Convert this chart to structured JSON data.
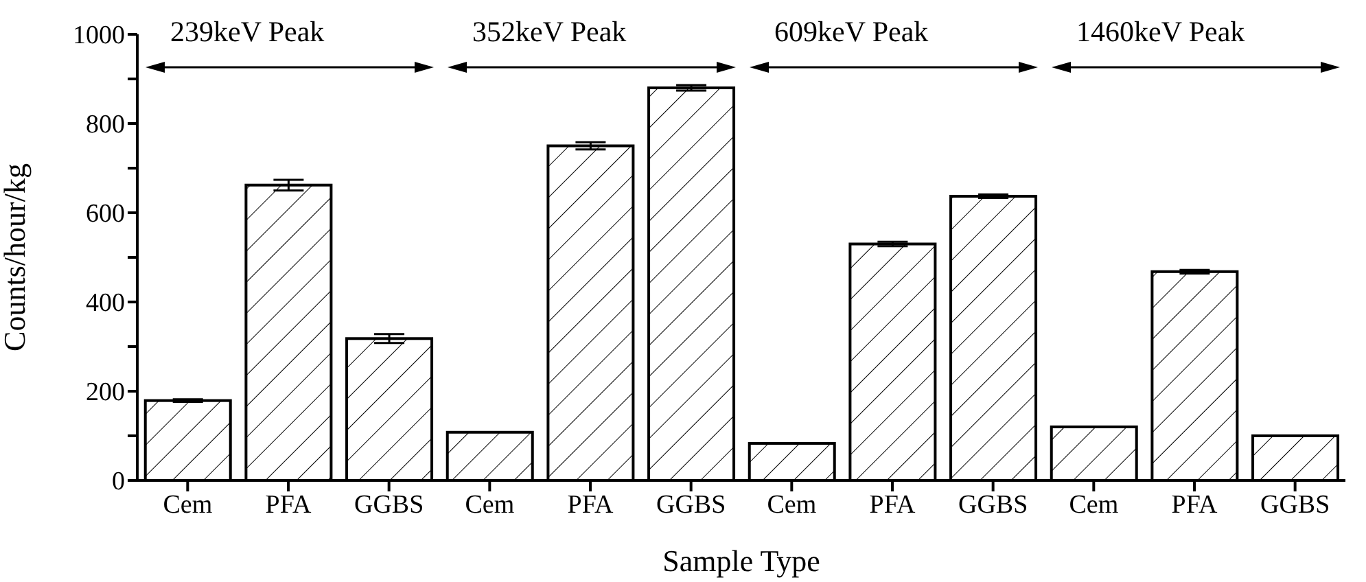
{
  "chart_data": {
    "type": "bar",
    "xlabel": "Sample Type",
    "ylabel": "Counts/hour/kg",
    "categories": [
      "Cem",
      "PFA",
      "GGBS",
      "Cem",
      "PFA",
      "GGBS",
      "Cem",
      "PFA",
      "GGBS",
      "Cem",
      "PFA",
      "GGBS"
    ],
    "values": [
      179,
      662,
      318,
      108,
      750,
      880,
      83,
      530,
      637,
      120,
      468,
      100
    ],
    "errors": [
      3,
      12,
      10,
      null,
      8,
      6,
      null,
      5,
      4,
      null,
      4,
      null
    ],
    "color": "#000000",
    "ylim": [
      0,
      1000
    ],
    "yticks": [
      0,
      {
        "value": 100,
        "label": null
      },
      200,
      {
        "value": 300,
        "label": null
      },
      400,
      {
        "value": 500,
        "label": null
      },
      600,
      {
        "value": 700,
        "label": null
      },
      800,
      {
        "value": 900,
        "label": null
      },
      1000
    ],
    "annotations": [
      "239keV Peak",
      "352keV Peak",
      "609keV Peak",
      "1460keV Peak"
    ]
  }
}
